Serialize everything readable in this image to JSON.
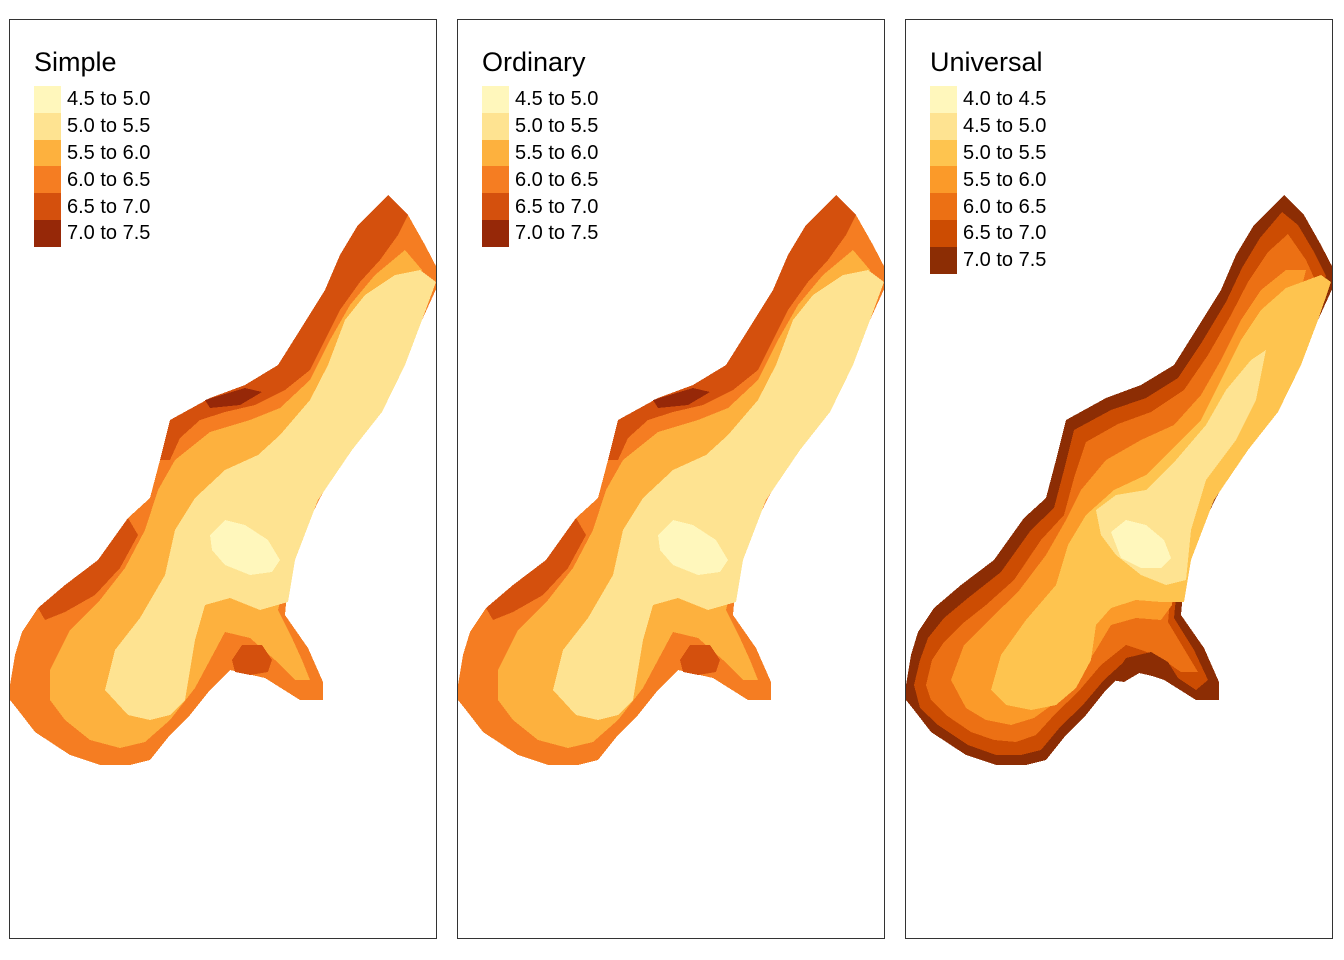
{
  "panels": [
    {
      "title": "Simple",
      "legend": [
        {
          "label": "4.5 to 5.0",
          "color": "#fff7bc"
        },
        {
          "label": "5.0 to 5.5",
          "color": "#fee391"
        },
        {
          "label": "5.5 to 6.0",
          "color": "#fdb13e"
        },
        {
          "label": "6.0 to 6.5",
          "color": "#f57d22"
        },
        {
          "label": "6.5 to 7.0",
          "color": "#d4500d"
        },
        {
          "label": "7.0 to 7.5",
          "color": "#962808"
        }
      ]
    },
    {
      "title": "Ordinary",
      "legend": [
        {
          "label": "4.5 to 5.0",
          "color": "#fff7bc"
        },
        {
          "label": "5.0 to 5.5",
          "color": "#fee391"
        },
        {
          "label": "5.5 to 6.0",
          "color": "#fdb13e"
        },
        {
          "label": "6.0 to 6.5",
          "color": "#f57d22"
        },
        {
          "label": "6.5 to 7.0",
          "color": "#d4500d"
        },
        {
          "label": "7.0 to 7.5",
          "color": "#962808"
        }
      ]
    },
    {
      "title": "Universal",
      "legend": [
        {
          "label": "4.0 to 4.5",
          "color": "#fff7bc"
        },
        {
          "label": "4.5 to 5.0",
          "color": "#fee391"
        },
        {
          "label": "5.0 to 5.5",
          "color": "#fec44f"
        },
        {
          "label": "5.5 to 6.0",
          "color": "#fb9a29"
        },
        {
          "label": "6.0 to 6.5",
          "color": "#ec7014"
        },
        {
          "label": "6.5 to 7.0",
          "color": "#cc4c02"
        },
        {
          "label": "7.0 to 7.5",
          "color": "#8c2d04"
        }
      ]
    }
  ]
}
